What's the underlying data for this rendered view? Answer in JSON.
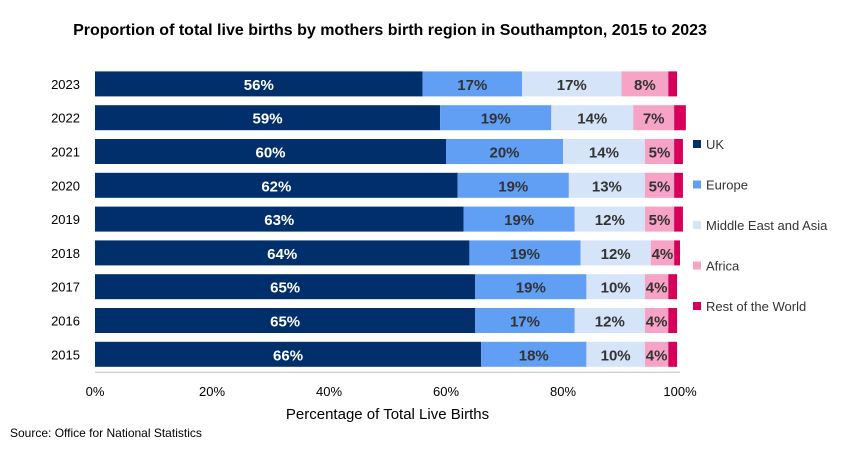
{
  "chart_data": {
    "type": "bar",
    "orientation": "horizontal",
    "stacked": true,
    "title": "Proportion of total live births by mothers birth region in Southampton, 2015 to 2023",
    "xlabel": "Percentage of Total Live Births",
    "ylabel": "",
    "xlim": [
      0,
      100
    ],
    "x_ticks": [
      "0%",
      "20%",
      "40%",
      "60%",
      "80%",
      "100%"
    ],
    "categories": [
      "2023",
      "2022",
      "2021",
      "2020",
      "2019",
      "2018",
      "2017",
      "2016",
      "2015"
    ],
    "series": [
      {
        "name": "UK",
        "color": "#002f6c",
        "values": [
          56,
          59,
          60,
          62,
          63,
          64,
          65,
          65,
          66
        ],
        "labels": [
          "56%",
          "59%",
          "60%",
          "62%",
          "63%",
          "64%",
          "65%",
          "65%",
          "66%"
        ]
      },
      {
        "name": "Europe",
        "color": "#609ff4",
        "values": [
          17,
          19,
          20,
          19,
          19,
          19,
          19,
          17,
          18
        ],
        "labels": [
          "17%",
          "19%",
          "20%",
          "19%",
          "19%",
          "19%",
          "19%",
          "17%",
          "18%"
        ]
      },
      {
        "name": "Middle East and Asia",
        "color": "#d5e4f8",
        "values": [
          17,
          14,
          14,
          13,
          12,
          12,
          10,
          12,
          10
        ],
        "labels": [
          "17%",
          "14%",
          "14%",
          "13%",
          "12%",
          "12%",
          "10%",
          "12%",
          "10%"
        ]
      },
      {
        "name": "Africa",
        "color": "#f7a3c5",
        "values": [
          8,
          7,
          5,
          5,
          5,
          4,
          4,
          4,
          4
        ],
        "labels": [
          "8%",
          "7%",
          "5%",
          "5%",
          "5%",
          "4%",
          "4%",
          "4%",
          "4%"
        ]
      },
      {
        "name": "Rest of the World",
        "color": "#d6005a",
        "values": [
          1.5,
          2,
          1.5,
          1.5,
          1.5,
          1,
          1.5,
          1.5,
          1.5
        ],
        "labels": [
          "",
          "",
          "",
          "",
          "",
          "",
          "",
          "",
          ""
        ]
      }
    ],
    "legend_position": "right",
    "grid": false
  },
  "source": "Source: Office for National Statistics"
}
